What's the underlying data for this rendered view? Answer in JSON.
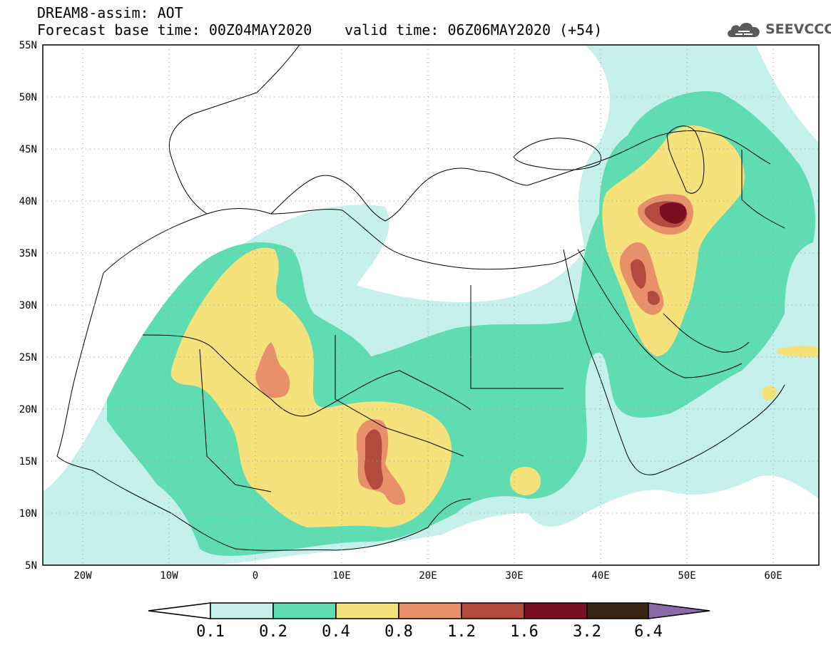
{
  "header": {
    "line1": "DREAM8-assim: AOT",
    "line2": "Forecast base time: 00Z04MAY2020",
    "valid": "valid time: 06Z06MAY2020 (+54)"
  },
  "logo": {
    "text": "SEEVCCC",
    "icon": "cloud-icon",
    "color": "#5a5a5a"
  },
  "map": {
    "lon_range": [
      -25,
      65
    ],
    "lat_range": [
      5,
      55
    ],
    "lat_ticks": [
      "5N",
      "10N",
      "15N",
      "20N",
      "25N",
      "30N",
      "35N",
      "40N",
      "45N",
      "50N",
      "55N"
    ],
    "lon_ticks": [
      "20W",
      "10W",
      "0",
      "10E",
      "20E",
      "30E",
      "40E",
      "50E",
      "60E"
    ],
    "grid": "dotted"
  },
  "colorbar": {
    "labels": [
      "0.1",
      "0.2",
      "0.4",
      "0.8",
      "1.2",
      "1.6",
      "3.2",
      "6.4"
    ],
    "colors": [
      "#c6f0ea",
      "#5fdcb2",
      "#f5e27a",
      "#e8906a",
      "#b24a3e",
      "#7a0f22",
      "#3a2414",
      "#8a6aa6"
    ]
  }
}
